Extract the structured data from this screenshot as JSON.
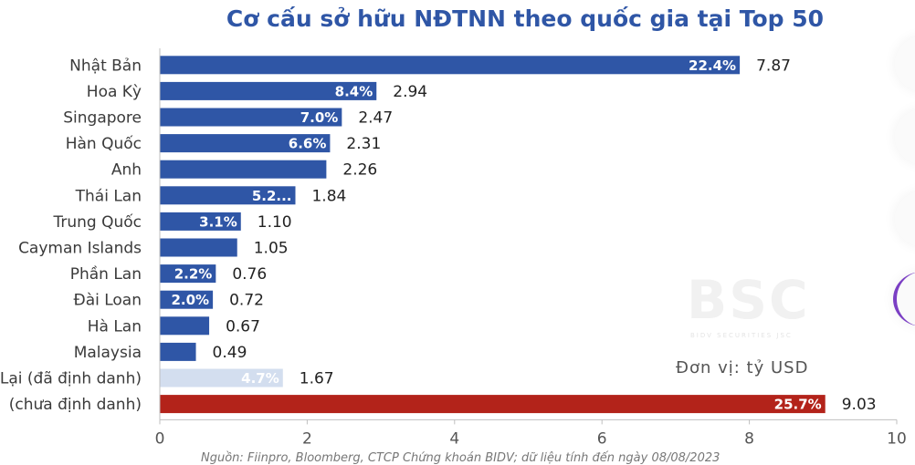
{
  "chart_data": {
    "type": "bar",
    "orientation": "horizontal",
    "title": "Cơ cấu sở hữu NĐTNN theo quốc gia tại Top 50",
    "unit_note": "Đơn vị: tỷ USD",
    "categories": [
      "Nhật Bản",
      "Hoa Kỳ",
      "Singapore",
      "Hàn Quốc",
      "Anh",
      "Thái Lan",
      "Trung Quốc",
      "Cayman Islands",
      "Phần Lan",
      "Đài Loan",
      "Hà Lan",
      "Malaysia",
      "Lại (đã định danh)",
      "(chưa định danh)"
    ],
    "values": [
      7.87,
      2.94,
      2.47,
      2.31,
      2.26,
      1.84,
      1.1,
      1.05,
      0.76,
      0.72,
      0.67,
      0.49,
      1.67,
      9.03
    ],
    "value_labels": [
      "7.87",
      "2.94",
      "2.47",
      "2.31",
      "2.26",
      "1.84",
      "1.10",
      "1.05",
      "0.76",
      "0.72",
      "0.67",
      "0.49",
      "1.67",
      "9.03"
    ],
    "pct_labels": [
      "22.4%",
      "8.4%",
      "7.0%",
      "6.6%",
      "",
      "5.2...",
      "3.1%",
      "",
      "2.2%",
      "2.0%",
      "",
      "",
      "4.7%",
      "25.7%"
    ],
    "bar_colors": [
      "#2f56a6",
      "#2f56a6",
      "#2f56a6",
      "#2f56a6",
      "#2f56a6",
      "#2f56a6",
      "#2f56a6",
      "#2f56a6",
      "#2f56a6",
      "#2f56a6",
      "#2f56a6",
      "#2f56a6",
      "#d3deef",
      "#b3231a"
    ],
    "xlim": [
      0,
      10
    ],
    "xticks": [
      "0",
      "2",
      "4",
      "6",
      "8",
      "10"
    ],
    "grid": false,
    "watermark": "BSC",
    "watermark_sub": "BIDV SECURITIES JSC",
    "source_note": "Nguồn: Fiinpro, Bloomberg, CTCP Chứng khoán BIDV; dữ liệu tính đến ngày 08/08/2023"
  }
}
